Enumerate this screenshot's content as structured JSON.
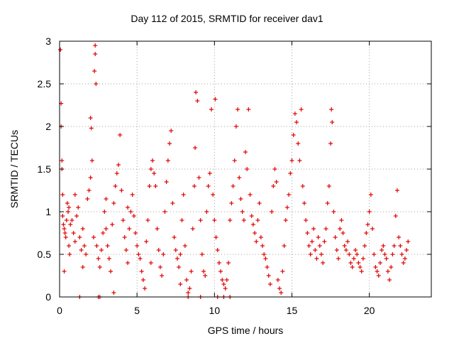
{
  "chart_data": {
    "type": "scatter",
    "title": "Day 112 of 2015, SRMTID for receiver dav1",
    "xlabel": "GPS time / hours",
    "ylabel": "SRMTID / TECUs",
    "xlim": [
      0,
      24
    ],
    "ylim": [
      0,
      3
    ],
    "xticks": [
      0,
      5,
      10,
      15,
      20
    ],
    "xtick_labels": [
      "0",
      "5",
      "10",
      "15",
      "20"
    ],
    "yticks": [
      0,
      0.5,
      1,
      1.5,
      2,
      2.5,
      3
    ],
    "ytick_labels": [
      "0",
      "0.5",
      "1",
      "1.5",
      "2",
      "2.5",
      "3"
    ],
    "grid": true,
    "marker": "+",
    "color": "#e00000",
    "series": [
      {
        "name": "dav1",
        "points": [
          [
            0.05,
            2.9
          ],
          [
            0.1,
            2.27
          ],
          [
            0.1,
            2.0
          ],
          [
            0.15,
            1.6
          ],
          [
            0.15,
            1.5
          ],
          [
            0.2,
            1.2
          ],
          [
            0.2,
            0.95
          ],
          [
            0.25,
            0.85
          ],
          [
            0.3,
            0.8
          ],
          [
            0.35,
            0.75
          ],
          [
            0.4,
            0.7
          ],
          [
            0.45,
            0.9
          ],
          [
            0.5,
            1.1
          ],
          [
            0.55,
            1.0
          ],
          [
            0.6,
            0.6
          ],
          [
            0.65,
            0.5
          ],
          [
            0.7,
            0.85
          ],
          [
            0.8,
            0.9
          ],
          [
            0.9,
            0.75
          ],
          [
            1.0,
            0.65
          ],
          [
            1.1,
            0.95
          ],
          [
            1.2,
            1.05
          ],
          [
            1.3,
            0.7
          ],
          [
            1.4,
            0.55
          ],
          [
            1.5,
            0.8
          ],
          [
            1.6,
            0.6
          ],
          [
            1.7,
            0.5
          ],
          [
            1.8,
            1.15
          ],
          [
            1.9,
            1.25
          ],
          [
            2.0,
            1.4
          ],
          [
            2.0,
            2.1
          ],
          [
            2.05,
            1.98
          ],
          [
            2.1,
            1.6
          ],
          [
            2.2,
            0.7
          ],
          [
            2.25,
            2.65
          ],
          [
            2.3,
            2.95
          ],
          [
            2.3,
            2.85
          ],
          [
            2.35,
            2.5
          ],
          [
            2.4,
            0.6
          ],
          [
            2.5,
            0.45
          ],
          [
            2.6,
            0.35
          ],
          [
            2.7,
            0.55
          ],
          [
            2.8,
            0.75
          ],
          [
            2.9,
            1.0
          ],
          [
            3.0,
            0.8
          ],
          [
            3.1,
            0.6
          ],
          [
            3.2,
            0.45
          ],
          [
            3.3,
            0.3
          ],
          [
            3.4,
            0.85
          ],
          [
            3.5,
            1.1
          ],
          [
            3.6,
            1.3
          ],
          [
            3.7,
            1.45
          ],
          [
            3.8,
            1.55
          ],
          [
            3.9,
            1.9
          ],
          [
            4.0,
            1.25
          ],
          [
            4.1,
            0.9
          ],
          [
            4.2,
            0.7
          ],
          [
            4.3,
            0.55
          ],
          [
            4.4,
            0.4
          ],
          [
            4.5,
            0.8
          ],
          [
            4.6,
            1.0
          ],
          [
            4.7,
            1.2
          ],
          [
            4.8,
            0.95
          ],
          [
            4.9,
            0.75
          ],
          [
            5.0,
            0.6
          ],
          [
            5.1,
            0.5
          ],
          [
            5.2,
            0.45
          ],
          [
            5.3,
            0.3
          ],
          [
            5.4,
            0.2
          ],
          [
            5.5,
            0.1
          ],
          [
            5.6,
            0.65
          ],
          [
            5.7,
            0.9
          ],
          [
            5.8,
            1.3
          ],
          [
            5.9,
            1.5
          ],
          [
            6.0,
            1.6
          ],
          [
            6.1,
            1.45
          ],
          [
            6.2,
            1.3
          ],
          [
            6.3,
            0.8
          ],
          [
            6.4,
            0.55
          ],
          [
            6.5,
            0.35
          ],
          [
            6.6,
            0.25
          ],
          [
            6.7,
            0.5
          ],
          [
            6.8,
            1.0
          ],
          [
            6.9,
            1.35
          ],
          [
            7.0,
            1.6
          ],
          [
            7.1,
            1.8
          ],
          [
            7.2,
            1.95
          ],
          [
            7.3,
            1.1
          ],
          [
            7.4,
            0.7
          ],
          [
            7.5,
            0.55
          ],
          [
            7.6,
            0.45
          ],
          [
            7.7,
            0.35
          ],
          [
            7.8,
            0.5
          ],
          [
            7.9,
            0.9
          ],
          [
            8.0,
            1.2
          ],
          [
            8.1,
            0.6
          ],
          [
            8.2,
            0.2
          ],
          [
            8.3,
            0.05
          ],
          [
            8.4,
            0.1
          ],
          [
            8.5,
            0.3
          ],
          [
            8.6,
            0.8
          ],
          [
            8.7,
            1.3
          ],
          [
            8.75,
            1.75
          ],
          [
            8.8,
            2.4
          ],
          [
            8.9,
            2.3
          ],
          [
            9.0,
            1.4
          ],
          [
            9.1,
            0.9
          ],
          [
            9.2,
            0.5
          ],
          [
            9.3,
            0.3
          ],
          [
            9.4,
            0.25
          ],
          [
            9.5,
            1.0
          ],
          [
            9.6,
            1.3
          ],
          [
            9.7,
            1.45
          ],
          [
            9.8,
            2.2
          ],
          [
            9.9,
            1.2
          ],
          [
            10.0,
            0.9
          ],
          [
            10.05,
            2.32
          ],
          [
            10.1,
            0.7
          ],
          [
            10.2,
            0.55
          ],
          [
            10.3,
            0.4
          ],
          [
            10.4,
            0.3
          ],
          [
            10.5,
            0.2
          ],
          [
            10.6,
            0.15
          ],
          [
            10.7,
            0.1
          ],
          [
            10.8,
            0.2
          ],
          [
            10.9,
            0.4
          ],
          [
            11.0,
            0.9
          ],
          [
            11.1,
            1.1
          ],
          [
            11.2,
            1.3
          ],
          [
            11.3,
            1.6
          ],
          [
            11.4,
            2.0
          ],
          [
            11.5,
            2.2
          ],
          [
            11.6,
            1.4
          ],
          [
            11.7,
            1.15
          ],
          [
            11.8,
            1.0
          ],
          [
            11.9,
            0.9
          ],
          [
            12.0,
            1.7
          ],
          [
            12.1,
            1.5
          ],
          [
            12.2,
            2.2
          ],
          [
            12.3,
            1.2
          ],
          [
            12.4,
            0.95
          ],
          [
            12.5,
            0.85
          ],
          [
            12.6,
            0.75
          ],
          [
            12.7,
            0.65
          ],
          [
            12.8,
            0.9
          ],
          [
            12.9,
            1.1
          ],
          [
            13.0,
            0.7
          ],
          [
            13.1,
            0.6
          ],
          [
            13.2,
            0.5
          ],
          [
            13.3,
            0.45
          ],
          [
            13.4,
            0.35
          ],
          [
            13.5,
            0.25
          ],
          [
            13.6,
            0.15
          ],
          [
            13.7,
            1.0
          ],
          [
            13.8,
            1.3
          ],
          [
            13.9,
            1.5
          ],
          [
            14.0,
            1.35
          ],
          [
            14.1,
            0.2
          ],
          [
            14.2,
            0.1
          ],
          [
            14.3,
            0.05
          ],
          [
            14.4,
            0.3
          ],
          [
            14.5,
            0.6
          ],
          [
            14.6,
            0.9
          ],
          [
            14.7,
            1.05
          ],
          [
            14.8,
            1.2
          ],
          [
            14.9,
            1.45
          ],
          [
            15.0,
            1.6
          ],
          [
            15.1,
            1.9
          ],
          [
            15.2,
            2.15
          ],
          [
            15.3,
            2.05
          ],
          [
            15.4,
            1.8
          ],
          [
            15.5,
            1.6
          ],
          [
            15.6,
            2.2
          ],
          [
            15.7,
            1.3
          ],
          [
            15.8,
            1.1
          ],
          [
            15.9,
            0.9
          ],
          [
            16.0,
            0.75
          ],
          [
            16.1,
            0.6
          ],
          [
            16.2,
            0.5
          ],
          [
            16.3,
            0.65
          ],
          [
            16.4,
            0.8
          ],
          [
            16.5,
            0.55
          ],
          [
            16.6,
            0.45
          ],
          [
            16.7,
            0.7
          ],
          [
            16.8,
            0.6
          ],
          [
            16.9,
            0.5
          ],
          [
            17.0,
            0.4
          ],
          [
            17.1,
            0.65
          ],
          [
            17.2,
            0.8
          ],
          [
            17.3,
            1.1
          ],
          [
            17.4,
            1.3
          ],
          [
            17.5,
            1.8
          ],
          [
            17.55,
            2.2
          ],
          [
            17.6,
            2.05
          ],
          [
            17.7,
            1.0
          ],
          [
            17.8,
            0.7
          ],
          [
            17.9,
            0.55
          ],
          [
            18.0,
            0.45
          ],
          [
            18.1,
            0.8
          ],
          [
            18.2,
            0.9
          ],
          [
            18.3,
            0.75
          ],
          [
            18.4,
            0.6
          ],
          [
            18.5,
            0.55
          ],
          [
            18.6,
            0.65
          ],
          [
            18.7,
            0.5
          ],
          [
            18.8,
            0.4
          ],
          [
            18.9,
            0.35
          ],
          [
            19.0,
            0.45
          ],
          [
            19.1,
            0.55
          ],
          [
            19.2,
            0.5
          ],
          [
            19.3,
            0.4
          ],
          [
            19.4,
            0.35
          ],
          [
            19.5,
            0.3
          ],
          [
            19.6,
            0.45
          ],
          [
            19.7,
            0.6
          ],
          [
            19.8,
            0.75
          ],
          [
            19.9,
            0.85
          ],
          [
            20.0,
            1.0
          ],
          [
            20.1,
            1.2
          ],
          [
            20.2,
            0.8
          ],
          [
            20.3,
            0.5
          ],
          [
            20.4,
            0.35
          ],
          [
            20.5,
            0.3
          ],
          [
            20.6,
            0.25
          ],
          [
            20.7,
            0.4
          ],
          [
            20.8,
            0.55
          ],
          [
            20.9,
            0.6
          ],
          [
            21.0,
            0.5
          ],
          [
            21.1,
            0.45
          ],
          [
            21.2,
            0.3
          ],
          [
            21.3,
            0.2
          ],
          [
            21.4,
            0.35
          ],
          [
            21.5,
            0.5
          ],
          [
            21.6,
            0.6
          ],
          [
            21.7,
            0.95
          ],
          [
            21.8,
            1.25
          ],
          [
            21.9,
            0.7
          ],
          [
            22.0,
            0.6
          ],
          [
            22.1,
            0.5
          ],
          [
            22.2,
            0.4
          ],
          [
            22.3,
            0.45
          ],
          [
            22.4,
            0.55
          ],
          [
            22.5,
            0.65
          ],
          [
            0.3,
            0.3
          ],
          [
            0.6,
            1.05
          ],
          [
            1.0,
            1.2
          ],
          [
            1.5,
            0.35
          ],
          [
            2.6,
            0.0
          ],
          [
            3.0,
            1.15
          ],
          [
            4.4,
            1.05
          ],
          [
            5.9,
            0.4
          ],
          [
            7.8,
            0.15
          ],
          [
            8.3,
            0.0
          ],
          [
            9.1,
            0.0
          ],
          [
            10.2,
            0.0
          ],
          [
            10.6,
            0.0
          ],
          [
            11.0,
            0.0
          ],
          [
            1.3,
            0.0
          ],
          [
            2.5,
            0.0
          ],
          [
            3.5,
            0.05
          ]
        ]
      }
    ]
  }
}
